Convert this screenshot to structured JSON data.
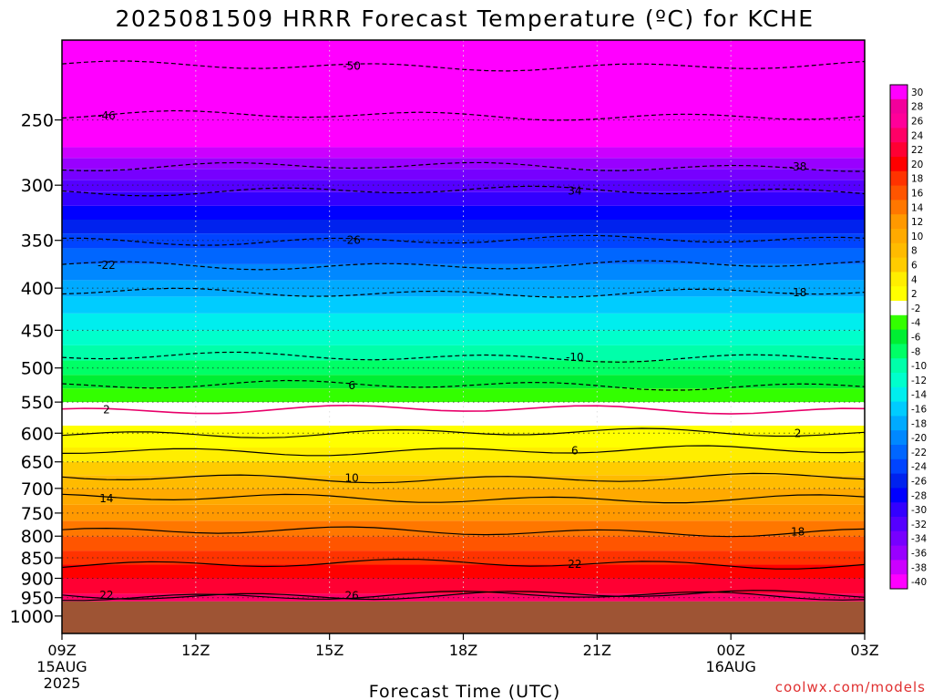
{
  "title": "2025081509 HRRR Forecast Temperature (ºC) for KCHE",
  "xlabel": "Forecast Time (UTC)",
  "credit": "coolwx.com/models",
  "colors": {
    "surface_fill": "#9e5434",
    "freezing_line": "#e8006a",
    "contour": "#000000"
  },
  "chart_data": {
    "type": "heatmap",
    "title": "2025081509 HRRR Forecast Temperature (ºC) for KCHE",
    "xlabel": "Forecast Time (UTC)",
    "ylabel": "",
    "x_hours": [
      0,
      18
    ],
    "x_ticks": [
      {
        "hour": 0,
        "lines": [
          "09Z",
          "15AUG",
          "2025"
        ]
      },
      {
        "hour": 3,
        "lines": [
          "12Z"
        ]
      },
      {
        "hour": 6,
        "lines": [
          "15Z"
        ]
      },
      {
        "hour": 9,
        "lines": [
          "18Z"
        ]
      },
      {
        "hour": 12,
        "lines": [
          "21Z"
        ]
      },
      {
        "hour": 15,
        "lines": [
          "00Z",
          "16AUG"
        ]
      },
      {
        "hour": 18,
        "lines": [
          "03Z"
        ]
      }
    ],
    "y_scale": "log",
    "y_range_hpa": [
      1050,
      200
    ],
    "y_ticks": [
      250,
      300,
      350,
      400,
      450,
      500,
      550,
      600,
      650,
      700,
      750,
      800,
      850,
      900,
      950,
      1000
    ],
    "grid": true,
    "surface_pressure_hpa": 960,
    "colorbar_levels": [
      30,
      28,
      26,
      24,
      22,
      20,
      18,
      16,
      14,
      12,
      10,
      8,
      6,
      4,
      2,
      -2,
      -4,
      -6,
      -8,
      -10,
      -12,
      -14,
      -16,
      -18,
      -20,
      -22,
      -24,
      -26,
      -28,
      -30,
      -32,
      -34,
      -36,
      -38,
      -40
    ],
    "colorbar_colors": [
      "#ff00ff",
      "#f2009b",
      "#ff0099",
      "#ff0066",
      "#ff0033",
      "#ff0000",
      "#ff3300",
      "#ff5500",
      "#ff7700",
      "#ff9900",
      "#ffaa00",
      "#ffbb00",
      "#ffcc00",
      "#ffee00",
      "#ffff00",
      "#ffffff",
      "#33ff00",
      "#00ee33",
      "#00ff66",
      "#00ffaa",
      "#00ffcc",
      "#00eeee",
      "#00ccff",
      "#00aaff",
      "#0088ff",
      "#0066ff",
      "#0044ff",
      "#0022ee",
      "#0000ff",
      "#3300ff",
      "#5500ff",
      "#7700ff",
      "#9900ff",
      "#cc00ff",
      "#ff00ff"
    ],
    "temperature_profile": {
      "pressure_hpa": [
        960,
        900,
        850,
        800,
        750,
        700,
        650,
        600,
        575,
        550,
        500,
        450,
        400,
        350,
        300,
        250,
        200
      ],
      "temp_c": [
        24,
        21,
        18,
        15,
        12,
        9,
        5,
        1,
        -1,
        -3,
        -8,
        -13,
        -18,
        -24,
        -32,
        -44,
        -55
      ]
    },
    "contours": [
      {
        "label": "22",
        "pressure_hpa": 943
      },
      {
        "label": "26",
        "pressure_hpa": 945
      },
      {
        "label": "22",
        "pressure_hpa": 865
      },
      {
        "label": "18",
        "pressure_hpa": 790
      },
      {
        "label": "14",
        "pressure_hpa": 720
      },
      {
        "label": "10",
        "pressure_hpa": 680
      },
      {
        "label": "6",
        "pressure_hpa": 630
      },
      {
        "label": "2",
        "pressure_hpa": 600
      },
      {
        "label": "2",
        "pressure_hpa": 562
      },
      {
        "label": "6",
        "pressure_hpa": 525
      },
      {
        "label": "-10",
        "pressure_hpa": 485
      },
      {
        "label": "-18",
        "pressure_hpa": 405
      },
      {
        "label": "-22",
        "pressure_hpa": 375
      },
      {
        "label": "-26",
        "pressure_hpa": 350
      },
      {
        "label": "34",
        "pressure_hpa": 305
      },
      {
        "label": "-38",
        "pressure_hpa": 285
      },
      {
        "label": "-46",
        "pressure_hpa": 247
      },
      {
        "label": "-50",
        "pressure_hpa": 215
      }
    ]
  }
}
